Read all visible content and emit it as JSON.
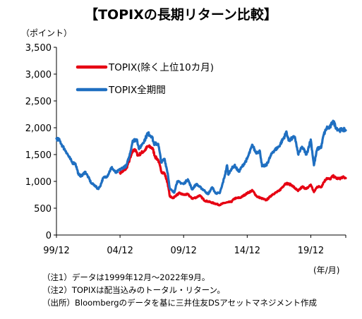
{
  "chart_data": {
    "type": "line",
    "title": "【TOPIXの長期リターン比較】",
    "y_unit": "（ポイント）",
    "x_unit": "(年/月)",
    "ylim": [
      0,
      3500
    ],
    "y_ticks": [
      "0",
      "500",
      "1,000",
      "1,500",
      "2,000",
      "2,500",
      "3,000",
      "3,500"
    ],
    "y_tick_values": [
      0,
      500,
      1000,
      1500,
      2000,
      2500,
      3000,
      3500
    ],
    "x_ticks": [
      "99/12",
      "04/12",
      "09/12",
      "14/12",
      "19/12"
    ],
    "x_tick_values": [
      "1999-12",
      "2004-12",
      "2009-12",
      "2014-12",
      "2019-12"
    ],
    "xlim": [
      "1999-12",
      "2022-09"
    ],
    "grid": false,
    "legend_position": "top-left",
    "series": [
      {
        "name": "TOPIX(除く上位10カ月)",
        "color": "#e60012",
        "points": [
          [
            "2004-12",
            1160
          ],
          [
            "2005-03",
            1190
          ],
          [
            "2005-06",
            1240
          ],
          [
            "2005-08",
            1350
          ],
          [
            "2005-10",
            1450
          ],
          [
            "2005-12",
            1560
          ],
          [
            "2006-02",
            1600
          ],
          [
            "2006-05",
            1480
          ],
          [
            "2006-08",
            1530
          ],
          [
            "2006-11",
            1570
          ],
          [
            "2007-02",
            1650
          ],
          [
            "2007-05",
            1640
          ],
          [
            "2007-07",
            1600
          ],
          [
            "2007-09",
            1460
          ],
          [
            "2007-12",
            1400
          ],
          [
            "2008-03",
            1180
          ],
          [
            "2008-06",
            1150
          ],
          [
            "2008-09",
            960
          ],
          [
            "2008-11",
            720
          ],
          [
            "2009-02",
            690
          ],
          [
            "2009-05",
            740
          ],
          [
            "2009-08",
            780
          ],
          [
            "2009-12",
            750
          ],
          [
            "2010-04",
            760
          ],
          [
            "2010-08",
            680
          ],
          [
            "2010-12",
            700
          ],
          [
            "2011-03",
            740
          ],
          [
            "2011-08",
            640
          ],
          [
            "2011-12",
            620
          ],
          [
            "2012-05",
            590
          ],
          [
            "2012-10",
            560
          ],
          [
            "2012-12",
            580
          ],
          [
            "2013-03",
            600
          ],
          [
            "2013-06",
            610
          ],
          [
            "2013-09",
            620
          ],
          [
            "2013-12",
            680
          ],
          [
            "2014-06",
            700
          ],
          [
            "2014-12",
            780
          ],
          [
            "2015-05",
            830
          ],
          [
            "2015-09",
            720
          ],
          [
            "2016-02",
            680
          ],
          [
            "2016-06",
            650
          ],
          [
            "2016-12",
            760
          ],
          [
            "2017-06",
            820
          ],
          [
            "2017-12",
            960
          ],
          [
            "2018-02",
            960
          ],
          [
            "2018-06",
            930
          ],
          [
            "2018-12",
            820
          ],
          [
            "2019-04",
            900
          ],
          [
            "2019-08",
            860
          ],
          [
            "2019-12",
            940
          ],
          [
            "2020-03",
            800
          ],
          [
            "2020-06",
            900
          ],
          [
            "2020-10",
            900
          ],
          [
            "2020-12",
            980
          ],
          [
            "2021-03",
            1060
          ],
          [
            "2021-06",
            1040
          ],
          [
            "2021-09",
            1100
          ],
          [
            "2021-12",
            1060
          ],
          [
            "2022-03",
            1050
          ],
          [
            "2022-06",
            1080
          ],
          [
            "2022-09",
            1060
          ]
        ]
      },
      {
        "name": "TOPIX全期間",
        "color": "#1f6fc1",
        "points": [
          [
            "1999-12",
            1800
          ],
          [
            "2000-03",
            1760
          ],
          [
            "2000-06",
            1650
          ],
          [
            "2000-09",
            1560
          ],
          [
            "2000-12",
            1450
          ],
          [
            "2001-03",
            1350
          ],
          [
            "2001-06",
            1330
          ],
          [
            "2001-09",
            1120
          ],
          [
            "2001-12",
            1100
          ],
          [
            "2002-03",
            1180
          ],
          [
            "2002-06",
            1080
          ],
          [
            "2002-09",
            960
          ],
          [
            "2002-12",
            930
          ],
          [
            "2003-03",
            860
          ],
          [
            "2003-05",
            900
          ],
          [
            "2003-08",
            1060
          ],
          [
            "2003-12",
            1100
          ],
          [
            "2004-04",
            1260
          ],
          [
            "2004-08",
            1160
          ],
          [
            "2004-12",
            1220
          ],
          [
            "2005-03",
            1260
          ],
          [
            "2005-06",
            1290
          ],
          [
            "2005-09",
            1480
          ],
          [
            "2005-12",
            1760
          ],
          [
            "2006-04",
            1780
          ],
          [
            "2006-06",
            1600
          ],
          [
            "2006-09",
            1700
          ],
          [
            "2006-12",
            1800
          ],
          [
            "2007-02",
            1900
          ],
          [
            "2007-06",
            1840
          ],
          [
            "2007-08",
            1700
          ],
          [
            "2007-12",
            1700
          ],
          [
            "2008-03",
            1350
          ],
          [
            "2008-06",
            1420
          ],
          [
            "2008-09",
            1150
          ],
          [
            "2008-11",
            860
          ],
          [
            "2009-03",
            790
          ],
          [
            "2009-06",
            1000
          ],
          [
            "2009-12",
            950
          ],
          [
            "2010-04",
            1040
          ],
          [
            "2010-08",
            850
          ],
          [
            "2010-12",
            950
          ],
          [
            "2011-03",
            900
          ],
          [
            "2011-08",
            820
          ],
          [
            "2011-11",
            760
          ],
          [
            "2012-03",
            890
          ],
          [
            "2012-06",
            780
          ],
          [
            "2012-10",
            780
          ],
          [
            "2012-12",
            900
          ],
          [
            "2013-03",
            1120
          ],
          [
            "2013-05",
            1300
          ],
          [
            "2013-06",
            1130
          ],
          [
            "2013-09",
            1230
          ],
          [
            "2013-12",
            1300
          ],
          [
            "2014-04",
            1180
          ],
          [
            "2014-09",
            1330
          ],
          [
            "2014-12",
            1420
          ],
          [
            "2015-05",
            1680
          ],
          [
            "2015-08",
            1540
          ],
          [
            "2015-12",
            1560
          ],
          [
            "2016-02",
            1280
          ],
          [
            "2016-06",
            1300
          ],
          [
            "2016-12",
            1550
          ],
          [
            "2017-06",
            1650
          ],
          [
            "2017-12",
            1870
          ],
          [
            "2018-01",
            1930
          ],
          [
            "2018-03",
            1760
          ],
          [
            "2018-09",
            1830
          ],
          [
            "2018-12",
            1510
          ],
          [
            "2019-04",
            1640
          ],
          [
            "2019-08",
            1500
          ],
          [
            "2019-12",
            1780
          ],
          [
            "2020-03",
            1300
          ],
          [
            "2020-06",
            1600
          ],
          [
            "2020-10",
            1650
          ],
          [
            "2020-12",
            1860
          ],
          [
            "2021-03",
            2000
          ],
          [
            "2021-06",
            2000
          ],
          [
            "2021-09",
            2130
          ],
          [
            "2021-12",
            2000
          ],
          [
            "2022-03",
            1950
          ],
          [
            "2022-06",
            1970
          ],
          [
            "2022-09",
            1950
          ]
        ]
      }
    ]
  },
  "notes": [
    "（注1）データは1999年12月～2022年9月。",
    "（注2）TOPIXは配当込みのトータル・リターン。",
    "（出所）Bloombergのデータを基に三井住友DSアセットマネジメント作成"
  ]
}
